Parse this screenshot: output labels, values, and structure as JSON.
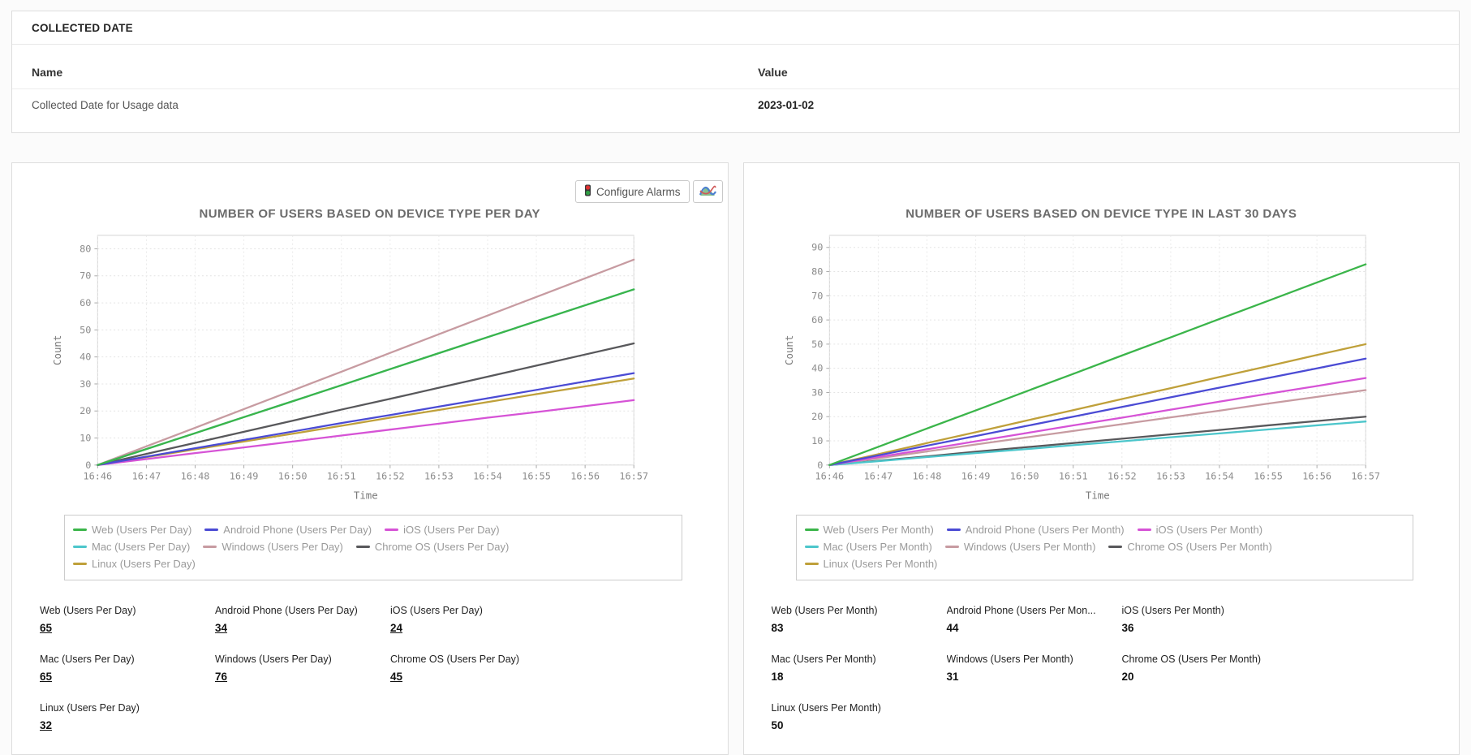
{
  "collected_date": {
    "title": "COLLECTED DATE",
    "columns": [
      "Name",
      "Value"
    ],
    "rows": [
      {
        "name": "Collected Date for Usage data",
        "value": "2023-01-02"
      }
    ]
  },
  "toolbar": {
    "configure_alarms_label": "Configure Alarms",
    "icons": [
      "traffic-light-icon",
      "chart-type-icon"
    ]
  },
  "colors": {
    "web_green": "#3bb54a",
    "android_blue": "#4b4bd4",
    "ios_magenta": "#d653d6",
    "mac_cyan": "#4cc6cb",
    "windows_rose": "#c79ba1",
    "chromeos_gray": "#58585b",
    "linux_gold": "#bfa03a",
    "panel_border": "#dddddd",
    "grid_line": "#e4e4e4",
    "title_gray": "#6b6b6b"
  },
  "chart_data": [
    {
      "type": "line",
      "title": "NUMBER OF USERS BASED ON DEVICE TYPE PER DAY",
      "xlabel": "Time",
      "ylabel": "Count",
      "x": [
        "16:46",
        "16:47",
        "16:48",
        "16:49",
        "16:50",
        "16:51",
        "16:52",
        "16:53",
        "16:54",
        "16:55",
        "16:56",
        "16:57"
      ],
      "ylim": [
        0,
        85
      ],
      "yticks": [
        0,
        10,
        20,
        30,
        40,
        50,
        60,
        70,
        80
      ],
      "grid": true,
      "legend_position": "bottom",
      "series": [
        {
          "name": "Web (Users Per Day)",
          "color": "#3bb54a",
          "values": [
            0,
            5.9,
            11.8,
            17.7,
            23.6,
            29.5,
            35.5,
            41.4,
            47.3,
            53.2,
            59.1,
            65
          ]
        },
        {
          "name": "Android Phone (Users Per Day)",
          "color": "#4b4bd4",
          "values": [
            0,
            3.1,
            6.2,
            9.3,
            12.4,
            15.5,
            18.5,
            21.6,
            24.7,
            27.8,
            30.9,
            34
          ]
        },
        {
          "name": "iOS (Users Per Day)",
          "color": "#d653d6",
          "values": [
            0,
            2.2,
            4.4,
            6.5,
            8.7,
            10.9,
            13.1,
            15.3,
            17.5,
            19.6,
            21.8,
            24
          ]
        },
        {
          "name": "Mac (Users Per Day)",
          "color": "#4cc6cb",
          "values": [
            0,
            5.9,
            11.8,
            17.7,
            23.6,
            29.5,
            35.5,
            41.4,
            47.3,
            53.2,
            59.1,
            65
          ]
        },
        {
          "name": "Windows (Users Per Day)",
          "color": "#c79ba1",
          "values": [
            0,
            6.9,
            13.8,
            20.7,
            27.6,
            34.5,
            41.5,
            48.4,
            55.3,
            62.2,
            69.1,
            76
          ]
        },
        {
          "name": "Chrome OS (Users Per Day)",
          "color": "#58585b",
          "values": [
            0,
            4.1,
            8.2,
            12.3,
            16.4,
            20.5,
            24.5,
            28.6,
            32.7,
            36.8,
            40.9,
            45
          ]
        },
        {
          "name": "Linux (Users Per Day)",
          "color": "#bfa03a",
          "values": [
            0,
            2.9,
            5.8,
            8.7,
            11.6,
            14.5,
            17.5,
            20.4,
            23.3,
            26.2,
            29.1,
            32
          ]
        }
      ],
      "summary_links": true,
      "summary": [
        {
          "label": "Web (Users Per Day)",
          "value": "65"
        },
        {
          "label": "Android Phone (Users Per Day)",
          "value": "34"
        },
        {
          "label": "iOS (Users Per Day)",
          "value": "24"
        },
        {
          "label": "Mac (Users Per Day)",
          "value": "65"
        },
        {
          "label": "Windows (Users Per Day)",
          "value": "76"
        },
        {
          "label": "Chrome OS (Users Per Day)",
          "value": "45"
        },
        {
          "label": "Linux (Users Per Day)",
          "value": "32"
        }
      ]
    },
    {
      "type": "line",
      "title": "NUMBER OF USERS BASED ON DEVICE TYPE IN LAST 30 DAYS",
      "xlabel": "Time",
      "ylabel": "Count",
      "x": [
        "16:46",
        "16:47",
        "16:48",
        "16:49",
        "16:50",
        "16:51",
        "16:52",
        "16:53",
        "16:54",
        "16:55",
        "16:56",
        "16:57"
      ],
      "ylim": [
        0,
        95
      ],
      "yticks": [
        0,
        10,
        20,
        30,
        40,
        50,
        60,
        70,
        80,
        90
      ],
      "grid": true,
      "legend_position": "bottom",
      "series": [
        {
          "name": "Web (Users Per Month)",
          "color": "#3bb54a",
          "values": [
            0,
            7.5,
            15.1,
            22.6,
            30.2,
            37.7,
            45.3,
            52.8,
            60.4,
            67.9,
            75.5,
            83
          ]
        },
        {
          "name": "Android Phone (Users Per Month)",
          "color": "#4b4bd4",
          "values": [
            0,
            4,
            8,
            12,
            16,
            20,
            24,
            28,
            32,
            36,
            40,
            44
          ]
        },
        {
          "name": "iOS (Users Per Month)",
          "color": "#d653d6",
          "values": [
            0,
            3.3,
            6.5,
            9.8,
            13.1,
            16.4,
            19.6,
            22.9,
            26.2,
            29.5,
            32.7,
            36
          ]
        },
        {
          "name": "Mac (Users Per Month)",
          "color": "#4cc6cb",
          "values": [
            0,
            1.6,
            3.3,
            4.9,
            6.5,
            8.2,
            9.8,
            11.5,
            13.1,
            14.7,
            16.4,
            18
          ]
        },
        {
          "name": "Windows (Users Per Month)",
          "color": "#c79ba1",
          "values": [
            0,
            2.8,
            5.6,
            8.5,
            11.3,
            14.1,
            16.9,
            19.7,
            22.5,
            25.4,
            28.2,
            31
          ]
        },
        {
          "name": "Chrome OS (Users Per Month)",
          "color": "#58585b",
          "values": [
            0,
            1.8,
            3.6,
            5.5,
            7.3,
            9.1,
            10.9,
            12.7,
            14.5,
            16.4,
            18.2,
            20
          ]
        },
        {
          "name": "Linux (Users Per Month)",
          "color": "#bfa03a",
          "values": [
            0,
            4.5,
            9.1,
            13.6,
            18.2,
            22.7,
            27.3,
            31.8,
            36.4,
            40.9,
            45.5,
            50
          ]
        }
      ],
      "summary_links": false,
      "summary": [
        {
          "label": "Web (Users Per Month)",
          "value": "83"
        },
        {
          "label": "Android Phone (Users Per Mon...",
          "value": "44"
        },
        {
          "label": "iOS (Users Per Month)",
          "value": "36"
        },
        {
          "label": "Mac (Users Per Month)",
          "value": "18"
        },
        {
          "label": "Windows (Users Per Month)",
          "value": "31"
        },
        {
          "label": "Chrome OS (Users Per Month)",
          "value": "20"
        },
        {
          "label": "Linux (Users Per Month)",
          "value": "50"
        }
      ]
    }
  ]
}
